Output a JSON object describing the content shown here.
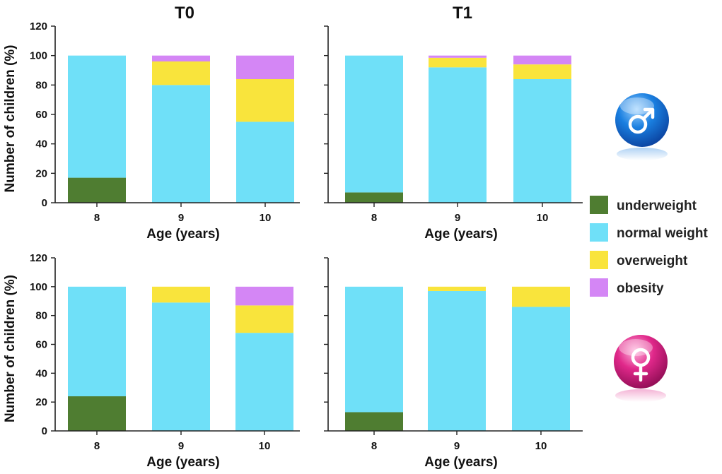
{
  "legend": {
    "items": [
      {
        "label": "underweight",
        "color": "#4f7d31"
      },
      {
        "label": "normal weight",
        "color": "#6fe0f8"
      },
      {
        "label": "overweight",
        "color": "#f9e43c"
      },
      {
        "label": "obesity",
        "color": "#d486f5"
      }
    ]
  },
  "icons": {
    "male": "male-symbol-icon",
    "female": "female-symbol-icon",
    "male_color": "#1a7fe0",
    "female_color": "#e0288a"
  },
  "chart_data": [
    {
      "type": "bar",
      "stacked": true,
      "panel": "T0-male",
      "title": "T0",
      "xlabel": "Age (years)",
      "ylabel": "Number of children (%)",
      "categories": [
        "8",
        "9",
        "10"
      ],
      "ylim": [
        0,
        120
      ],
      "yticks": [
        "0",
        "20",
        "40",
        "60",
        "80",
        "100",
        "120"
      ],
      "series": [
        {
          "name": "underweight",
          "values": [
            17,
            0,
            0
          ]
        },
        {
          "name": "normal weight",
          "values": [
            83,
            80,
            55
          ]
        },
        {
          "name": "overweight",
          "values": [
            0,
            16,
            29
          ]
        },
        {
          "name": "obesity",
          "values": [
            0,
            4,
            16
          ]
        }
      ]
    },
    {
      "type": "bar",
      "stacked": true,
      "panel": "T1-male",
      "title": "T1",
      "xlabel": "Age (years)",
      "ylabel": "",
      "categories": [
        "8",
        "9",
        "10"
      ],
      "ylim": [
        0,
        120
      ],
      "yticks": [],
      "series": [
        {
          "name": "underweight",
          "values": [
            7,
            0,
            0
          ]
        },
        {
          "name": "normal weight",
          "values": [
            93,
            92,
            84
          ]
        },
        {
          "name": "overweight",
          "values": [
            0,
            6.5,
            10
          ]
        },
        {
          "name": "obesity",
          "values": [
            0,
            1.5,
            6
          ]
        }
      ]
    },
    {
      "type": "bar",
      "stacked": true,
      "panel": "T0-female",
      "title": "",
      "xlabel": "Age (years)",
      "ylabel": "Number of children (%)",
      "categories": [
        "8",
        "9",
        "10"
      ],
      "ylim": [
        0,
        120
      ],
      "yticks": [
        "0",
        "20",
        "40",
        "60",
        "80",
        "100",
        "120"
      ],
      "series": [
        {
          "name": "underweight",
          "values": [
            24,
            0,
            0
          ]
        },
        {
          "name": "normal weight",
          "values": [
            76,
            89,
            68
          ]
        },
        {
          "name": "overweight",
          "values": [
            0,
            11,
            19
          ]
        },
        {
          "name": "obesity",
          "values": [
            0,
            0,
            13
          ]
        }
      ]
    },
    {
      "type": "bar",
      "stacked": true,
      "panel": "T1-female",
      "title": "",
      "xlabel": "Age (years)",
      "ylabel": "",
      "categories": [
        "8",
        "9",
        "10"
      ],
      "ylim": [
        0,
        120
      ],
      "yticks": [],
      "series": [
        {
          "name": "underweight",
          "values": [
            13,
            0,
            0
          ]
        },
        {
          "name": "normal weight",
          "values": [
            87,
            97,
            86
          ]
        },
        {
          "name": "overweight",
          "values": [
            0,
            3,
            14
          ]
        },
        {
          "name": "obesity",
          "values": [
            0,
            0,
            0
          ]
        }
      ]
    }
  ]
}
